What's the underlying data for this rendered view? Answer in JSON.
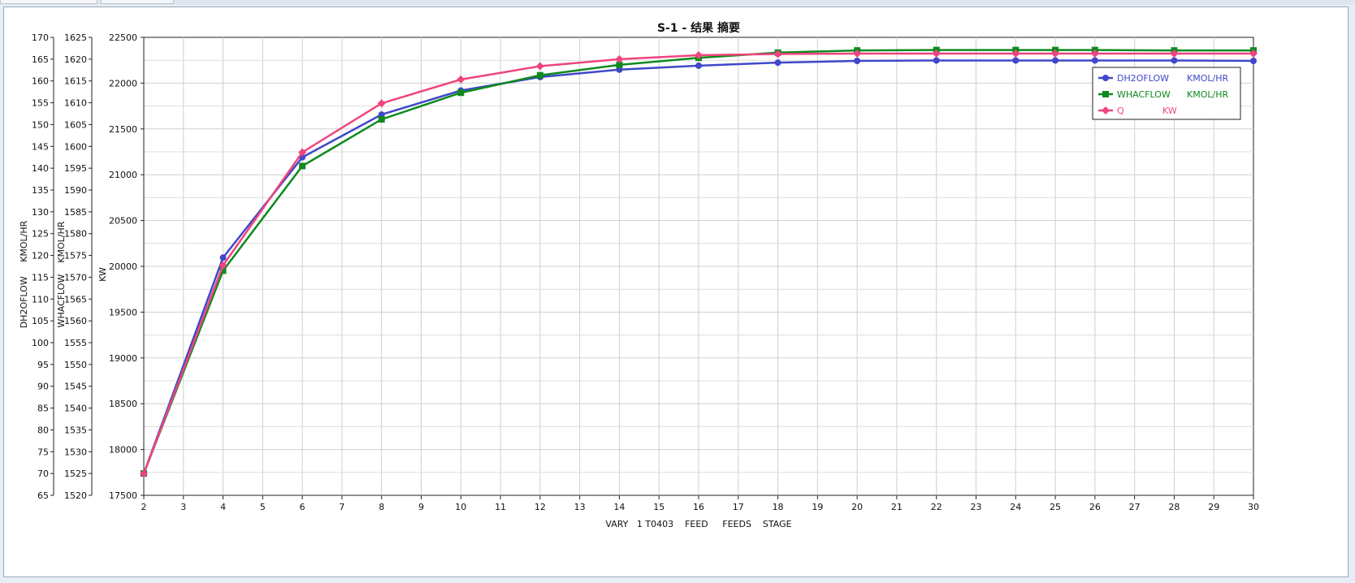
{
  "chart_data": {
    "type": "line",
    "title": "S-1 - 结果 摘要",
    "xlabel": "VARY   1 T0403    FEED     FEEDS    STAGE",
    "x_ticks": [
      "2",
      "3",
      "4",
      "5",
      "6",
      "7",
      "8",
      "9",
      "10",
      "11",
      "12",
      "13",
      "14",
      "15",
      "16",
      "17",
      "18",
      "19",
      "20",
      "21",
      "22",
      "23",
      "24",
      "25",
      "26",
      "27",
      "28",
      "29",
      "30"
    ],
    "axes": [
      {
        "id": "dh2o",
        "label": "DH2OFLOW     KMOL/HR",
        "min": 65,
        "max": 170,
        "step": 5
      },
      {
        "id": "whac",
        "label": "WHACFLOW    KMOL/HR",
        "min": 1520,
        "max": 1625,
        "step": 5
      },
      {
        "id": "q",
        "label": "KW",
        "min": 17500,
        "max": 22500,
        "step": 500
      }
    ],
    "series": [
      {
        "name": "DH2OFLOW",
        "unit": "KMOL/HR",
        "axis": "dh2o",
        "color": "#3f48c8",
        "marker": "circle",
        "x": [
          2,
          4,
          6,
          8,
          10,
          12,
          14,
          16,
          18,
          20,
          22,
          24,
          25,
          26,
          28,
          30
        ],
        "y": [
          70,
          119.5,
          142.5,
          152.3,
          157.8,
          160.9,
          162.6,
          163.5,
          164.2,
          164.6,
          164.7,
          164.7,
          164.7,
          164.7,
          164.7,
          164.6
        ]
      },
      {
        "name": "WHACFLOW",
        "unit": "KMOL/HR",
        "axis": "whac",
        "color": "#0f8a1f",
        "marker": "square",
        "x": [
          2,
          4,
          6,
          8,
          10,
          12,
          14,
          16,
          18,
          20,
          22,
          24,
          25,
          26,
          28,
          30
        ],
        "y": [
          1525,
          1571.5,
          1595.5,
          1606.2,
          1612.3,
          1616.3,
          1618.7,
          1620.3,
          1621.5,
          1622.0,
          1622.1,
          1622.1,
          1622.1,
          1622.1,
          1622.0,
          1622.0
        ]
      },
      {
        "name": "Q",
        "unit": "KW",
        "axis": "q",
        "color": "#f0447e",
        "marker": "diamond",
        "x": [
          2,
          4,
          6,
          8,
          10,
          12,
          14,
          16,
          18,
          20,
          22,
          24,
          25,
          26,
          28,
          30
        ],
        "y": [
          17735,
          20010,
          21245,
          21780,
          22040,
          22185,
          22262,
          22305,
          22318,
          22323,
          22323,
          22323,
          22323,
          22323,
          22323,
          22323
        ]
      }
    ],
    "legend_position": "top-right",
    "grid": true
  }
}
